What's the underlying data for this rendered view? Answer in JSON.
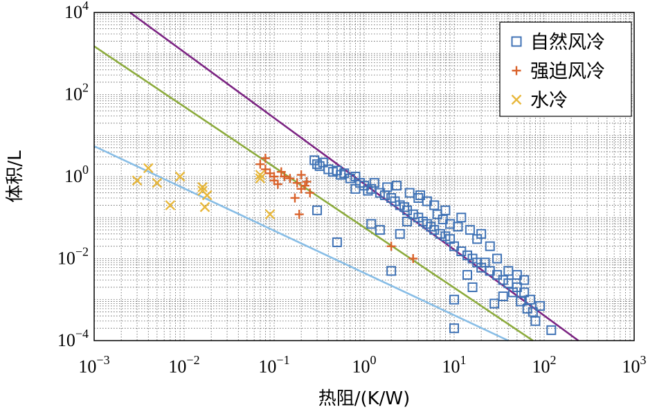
{
  "chart_data": {
    "type": "scatter",
    "xlabel": "热阻/(K/W)",
    "ylabel": "体积/L",
    "x_scale": "log",
    "y_scale": "log",
    "xlim": [
      0.001,
      1000
    ],
    "ylim": [
      0.0001,
      10000
    ],
    "x_ticks": [
      {
        "base": "10",
        "exp": "−3"
      },
      {
        "base": "10",
        "exp": "−2"
      },
      {
        "base": "10",
        "exp": "−1"
      },
      {
        "base": "10",
        "exp": "0"
      },
      {
        "base": "10",
        "exp": "1"
      },
      {
        "base": "10",
        "exp": "2"
      },
      {
        "base": "10",
        "exp": "3"
      }
    ],
    "y_ticks": [
      {
        "base": "10",
        "exp": "−4"
      },
      {
        "base": "10",
        "exp": "−2"
      },
      {
        "base": "10",
        "exp": "0"
      },
      {
        "base": "10",
        "exp": "2"
      },
      {
        "base": "10",
        "exp": "4"
      }
    ],
    "grid": true,
    "legend_position": "top-right",
    "series": [
      {
        "name": "自然风冷",
        "marker": "square",
        "color": "#3f72b5",
        "points": [
          [
            0.28,
            2.5
          ],
          [
            0.3,
            2.0
          ],
          [
            0.32,
            1.8
          ],
          [
            0.35,
            2.2
          ],
          [
            0.4,
            1.5
          ],
          [
            0.45,
            1.3
          ],
          [
            0.5,
            1.4
          ],
          [
            0.55,
            1.1
          ],
          [
            0.6,
            1.2
          ],
          [
            0.7,
            0.9
          ],
          [
            0.8,
            1.0
          ],
          [
            0.9,
            0.7
          ],
          [
            1.0,
            0.6
          ],
          [
            1.2,
            0.5
          ],
          [
            1.3,
            0.7
          ],
          [
            1.5,
            0.4
          ],
          [
            1.7,
            0.35
          ],
          [
            2.0,
            0.3
          ],
          [
            2.2,
            0.25
          ],
          [
            2.5,
            0.2
          ],
          [
            2.8,
            0.18
          ],
          [
            3.0,
            0.15
          ],
          [
            3.5,
            0.12
          ],
          [
            4.0,
            0.1
          ],
          [
            4.5,
            0.08
          ],
          [
            5.0,
            0.07
          ],
          [
            5.5,
            0.06
          ],
          [
            6.0,
            0.05
          ],
          [
            7.0,
            0.04
          ],
          [
            8.0,
            0.035
          ],
          [
            9.0,
            0.03
          ],
          [
            10.0,
            0.02
          ],
          [
            12.0,
            0.015
          ],
          [
            14.0,
            0.012
          ],
          [
            16.0,
            0.01
          ],
          [
            18.0,
            0.008
          ],
          [
            20.0,
            0.006
          ],
          [
            25.0,
            0.005
          ],
          [
            30.0,
            0.004
          ],
          [
            35.0,
            0.003
          ],
          [
            40.0,
            0.0025
          ],
          [
            50.0,
            0.002
          ],
          [
            60.0,
            0.0015
          ],
          [
            70.0,
            0.001
          ],
          [
            0.3,
            0.15
          ],
          [
            0.5,
            0.025
          ],
          [
            1.2,
            0.07
          ],
          [
            1.5,
            0.05
          ],
          [
            2.0,
            0.005
          ],
          [
            2.5,
            0.04
          ],
          [
            3.0,
            0.08
          ],
          [
            4.0,
            0.3
          ],
          [
            5.0,
            0.25
          ],
          [
            6.0,
            0.2
          ],
          [
            8.0,
            0.15
          ],
          [
            10.0,
            0.001
          ],
          [
            10.0,
            0.0002
          ],
          [
            12.0,
            0.1
          ],
          [
            15.0,
            0.05
          ],
          [
            18.0,
            0.03
          ],
          [
            20.0,
            0.04
          ],
          [
            25.0,
            0.02
          ],
          [
            30.0,
            0.01
          ],
          [
            40.0,
            0.005
          ],
          [
            50.0,
            0.004
          ],
          [
            60.0,
            0.003
          ],
          [
            80.0,
            0.0003
          ],
          [
            90.0,
            0.0007
          ],
          [
            120.0,
            0.00018
          ],
          [
            0.8,
            0.5
          ],
          [
            1.1,
            0.45
          ],
          [
            1.8,
            0.55
          ],
          [
            2.3,
            0.6
          ],
          [
            3.2,
            0.4
          ],
          [
            4.2,
            0.35
          ],
          [
            6.5,
            0.12
          ],
          [
            7.5,
            0.09
          ],
          [
            9.0,
            0.07
          ],
          [
            11.0,
            0.06
          ],
          [
            14.0,
            0.004
          ],
          [
            16.0,
            0.002
          ],
          [
            22.0,
            0.008
          ],
          [
            28.0,
            0.0008
          ],
          [
            35.0,
            0.0012
          ],
          [
            45.0,
            0.0015
          ],
          [
            55.0,
            0.0009
          ],
          [
            65.0,
            0.0006
          ],
          [
            75.0,
            0.0005
          ]
        ]
      },
      {
        "name": "强迫风冷",
        "marker": "plus",
        "color": "#d9622b",
        "points": [
          [
            0.07,
            2.0
          ],
          [
            0.08,
            1.5
          ],
          [
            0.09,
            1.2
          ],
          [
            0.1,
            1.0
          ],
          [
            0.1,
            0.8
          ],
          [
            0.12,
            1.3
          ],
          [
            0.15,
            0.9
          ],
          [
            0.18,
            0.7
          ],
          [
            0.2,
            0.5
          ],
          [
            0.2,
            1.1
          ],
          [
            0.22,
            0.6
          ],
          [
            0.25,
            0.4
          ],
          [
            0.08,
            2.8
          ],
          [
            0.11,
            0.65
          ],
          [
            0.13,
            1.0
          ],
          [
            0.17,
            0.3
          ],
          [
            0.19,
            0.12
          ],
          [
            2.0,
            0.02
          ],
          [
            3.5,
            0.01
          ],
          [
            0.23,
            0.75
          ]
        ]
      },
      {
        "name": "水冷",
        "marker": "x",
        "color": "#e8b83c",
        "points": [
          [
            0.003,
            0.8
          ],
          [
            0.004,
            1.6
          ],
          [
            0.005,
            0.7
          ],
          [
            0.007,
            0.2
          ],
          [
            0.009,
            1.0
          ],
          [
            0.016,
            0.45
          ],
          [
            0.016,
            0.55
          ],
          [
            0.017,
            0.18
          ],
          [
            0.018,
            0.35
          ],
          [
            0.07,
            0.9
          ],
          [
            0.07,
            1.1
          ],
          [
            0.09,
            0.12
          ]
        ]
      }
    ],
    "fit_lines": [
      {
        "color": "#7b2382",
        "points": [
          [
            0.0025,
            10000
          ],
          [
            240,
            0.0001
          ]
        ]
      },
      {
        "color": "#8cab3c",
        "points": [
          [
            0.001,
            1500
          ],
          [
            75,
            0.0001
          ]
        ]
      },
      {
        "color": "#87bde6",
        "points": [
          [
            0.001,
            5.5
          ],
          [
            40,
            0.0001
          ]
        ]
      }
    ]
  }
}
